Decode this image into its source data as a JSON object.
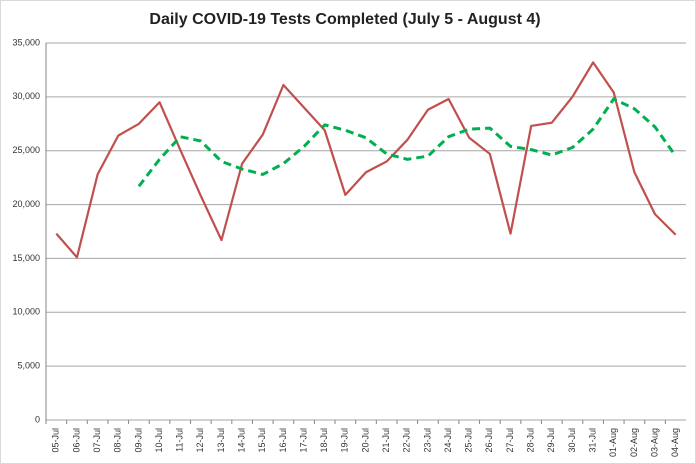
{
  "chart_data": {
    "type": "line",
    "title": "Daily COVID-19 Tests Completed (July 5 - August 4)",
    "categories": [
      "05-Jul",
      "06-Jul",
      "07-Jul",
      "08-Jul",
      "09-Jul",
      "10-Jul",
      "11-Jul",
      "12-Jul",
      "13-Jul",
      "14-Jul",
      "15-Jul",
      "16-Jul",
      "17-Jul",
      "18-Jul",
      "19-Jul",
      "20-Jul",
      "21-Jul",
      "22-Jul",
      "23-Jul",
      "24-Jul",
      "25-Jul",
      "26-Jul",
      "27-Jul",
      "28-Jul",
      "29-Jul",
      "30-Jul",
      "31-Jul",
      "01-Aug",
      "02-Aug",
      "03-Aug",
      "04-Aug"
    ],
    "series": [
      {
        "color": "#c0504d",
        "dashed": false,
        "values": [
          17300,
          15100,
          22800,
          26400,
          27500,
          29500,
          25100,
          20800,
          16700,
          23800,
          26500,
          31100,
          29000,
          26900,
          20900,
          23000,
          24000,
          26000,
          28800,
          29800,
          26200,
          24700,
          17300,
          27300,
          27600,
          30000,
          33200,
          30400,
          23000,
          19100,
          17200
        ]
      },
      {
        "color": "#00b050",
        "dashed": true,
        "values": [
          null,
          null,
          null,
          null,
          21700,
          24200,
          26300,
          25900,
          24000,
          23300,
          22800,
          23800,
          25400,
          27400,
          26900,
          26200,
          24700,
          24200,
          24500,
          26300,
          27000,
          27100,
          25400,
          25100,
          24600,
          25300,
          27000,
          29800,
          28900,
          27200,
          24500
        ]
      }
    ],
    "ylim": [
      0,
      35000
    ],
    "yticks": [
      0,
      {
        "value": 5000,
        "label": "5,000"
      },
      {
        "value": 10000,
        "label": "10,000"
      },
      {
        "value": 15000,
        "label": "15,000"
      },
      {
        "value": 20000,
        "label": "20,000"
      },
      {
        "value": 25000,
        "label": "25,000"
      },
      {
        "value": 30000,
        "label": "30,000"
      },
      {
        "value": 35000,
        "label": "35,000"
      }
    ],
    "grid": true
  }
}
